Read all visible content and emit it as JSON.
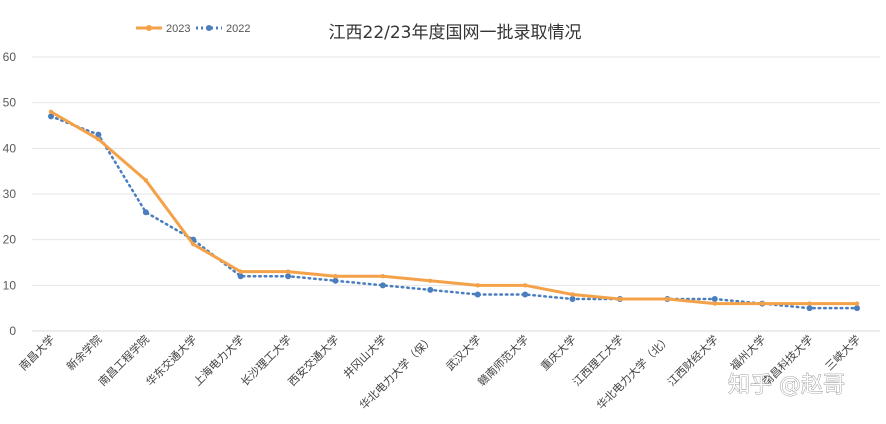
{
  "watermark": "知乎 @赵哥",
  "chart_data": {
    "type": "line",
    "title": "江西22/23年度国网一批录取情况",
    "ylim": [
      0,
      60
    ],
    "yticks": [
      0,
      10,
      20,
      30,
      40,
      50,
      60
    ],
    "grid": true,
    "legend_position": "top-left",
    "categories": [
      "南昌大学",
      "新余学院",
      "南昌工程学院",
      "华东交通大学",
      "上海电力大学",
      "长沙理工大学",
      "西安交通大学",
      "井冈山大学",
      "华北电力大学（保）",
      "武汉大学",
      "赣南师范大学",
      "重庆大学",
      "江西理工大学",
      "华北电力大学（北）",
      "江西财经大学",
      "福州大学",
      "南昌科技大学",
      "三峡大学"
    ],
    "series": [
      {
        "name": "2023",
        "color": "#f4a24a",
        "style": "solid",
        "values": [
          48,
          42,
          33,
          19,
          13,
          13,
          12,
          12,
          11,
          10,
          10,
          8,
          7,
          7,
          6,
          6,
          6,
          6
        ]
      },
      {
        "name": "2022",
        "color": "#4a7ebf",
        "style": "dotted",
        "values": [
          47,
          43,
          26,
          20,
          12,
          12,
          11,
          10,
          9,
          8,
          8,
          7,
          7,
          7,
          7,
          6,
          5,
          5
        ]
      }
    ]
  }
}
